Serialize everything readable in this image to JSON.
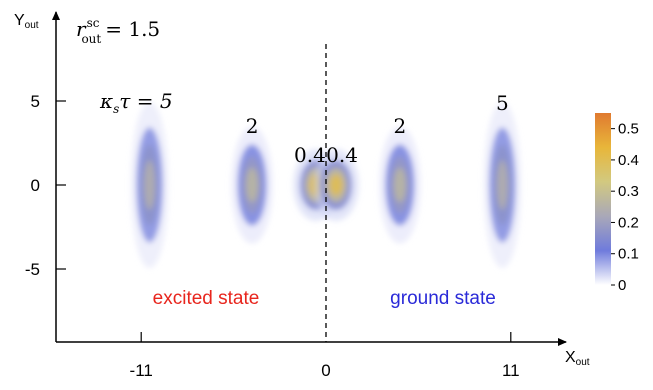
{
  "chart_data": {
    "type": "heatmap",
    "x_axis": {
      "label": "X",
      "label_sub": "out",
      "ticks": [
        -11,
        0,
        11
      ],
      "range": [
        -13.5,
        13
      ]
    },
    "y_axis": {
      "label": "Y",
      "label_sub": "out",
      "ticks": [
        5,
        0,
        -5
      ],
      "range": [
        -9.2,
        10
      ]
    },
    "annotation": {
      "r_label": "r",
      "r_sup": "sc",
      "r_sub": "out",
      "r_value": "= 1.5"
    },
    "kappa_label": {
      "text": "κ",
      "sub": "s",
      "rest": "τ = 5"
    },
    "spots": [
      {
        "side": "excited",
        "x": -10.5,
        "label": "",
        "sigma_x": 0.5,
        "sigma_y": 2.2,
        "peak": 0.3
      },
      {
        "side": "excited",
        "x": -4.4,
        "label": "2",
        "sigma_x": 0.55,
        "sigma_y": 1.55,
        "peak": 0.33
      },
      {
        "side": "excited",
        "x": -0.6,
        "label": "0.4",
        "sigma_x": 0.6,
        "sigma_y": 0.95,
        "peak": 0.5
      },
      {
        "side": "ground",
        "x": 0.6,
        "label": "0.4",
        "sigma_x": 0.6,
        "sigma_y": 0.95,
        "peak": 0.5
      },
      {
        "side": "ground",
        "x": 4.4,
        "label": "2",
        "sigma_x": 0.55,
        "sigma_y": 1.55,
        "peak": 0.33
      },
      {
        "side": "ground",
        "x": 10.5,
        "label": "5",
        "sigma_x": 0.5,
        "sigma_y": 2.2,
        "peak": 0.3
      }
    ],
    "colorbar": {
      "min": 0,
      "max": 0.55,
      "ticks": [
        "0.5",
        "0.4",
        "0.3",
        "0.2",
        "0.1",
        "0"
      ],
      "tick_values": [
        0.5,
        0.4,
        0.3,
        0.2,
        0.1,
        0
      ],
      "colors": [
        "#ffffff",
        "#6f7bdc",
        "#a9a8b8",
        "#d2c980",
        "#e8b63a",
        "#e07a30"
      ]
    },
    "regions": [
      {
        "name": "excited state",
        "color": "#e8251d"
      },
      {
        "name": "ground state",
        "color": "#2a2ad8"
      }
    ],
    "divider_x": 0
  }
}
